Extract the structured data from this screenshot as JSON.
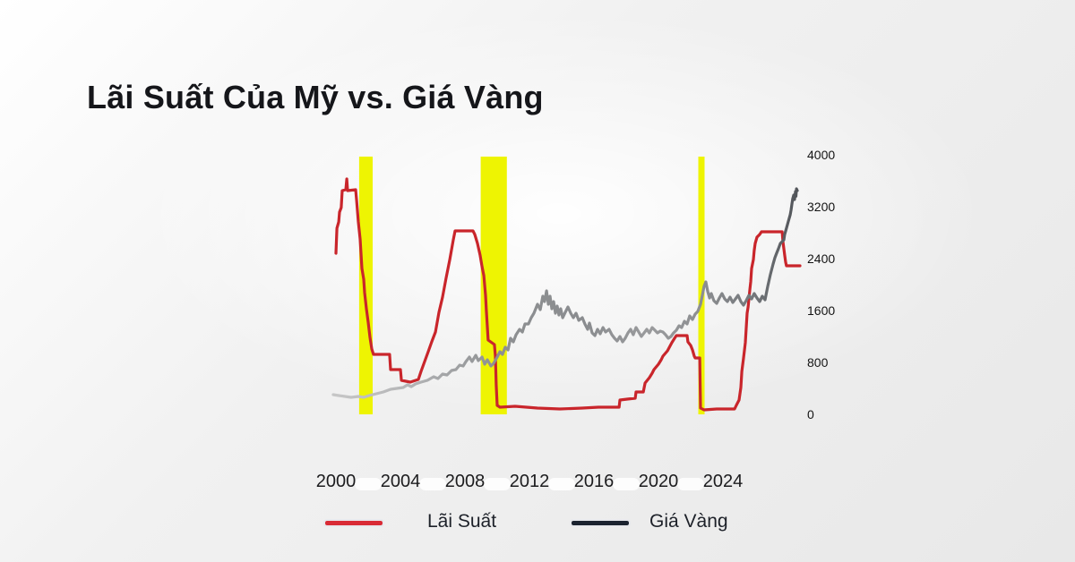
{
  "chart": {
    "title": "Lãi Suất Của Mỹ vs. Giá Vàng",
    "type": "line",
    "x_axis": {
      "unit": "year",
      "ticks": [
        2000,
        2004,
        2008,
        2012,
        2016,
        2020,
        2024
      ]
    },
    "y_axis": {
      "side": "right",
      "range": [
        0,
        4000
      ],
      "ticks": [
        4000,
        3200,
        2400,
        1600,
        800,
        0
      ]
    },
    "highlight_bands": {
      "color": "#eef402",
      "ranges": [
        [
          2001.44,
          2002.28
        ],
        [
          2008.98,
          2010.6
        ],
        [
          2022.47,
          2022.86
        ]
      ]
    },
    "series": [
      {
        "name": "Lãi Suất",
        "color": "#c9252b",
        "legend_swatch_color": "#d92b35",
        "points": [
          [
            2000.0,
            2483
          ],
          [
            2000.06,
            2869
          ],
          [
            2000.17,
            2966
          ],
          [
            2000.22,
            3117
          ],
          [
            2000.33,
            3186
          ],
          [
            2000.39,
            3448
          ],
          [
            2000.61,
            3462
          ],
          [
            2000.67,
            3628
          ],
          [
            2000.72,
            3448
          ],
          [
            2001.22,
            3462
          ],
          [
            2001.28,
            3310
          ],
          [
            2001.39,
            2966
          ],
          [
            2001.5,
            2703
          ],
          [
            2001.61,
            2248
          ],
          [
            2001.72,
            2083
          ],
          [
            2001.78,
            1876
          ],
          [
            2001.89,
            1628
          ],
          [
            2002.0,
            1421
          ],
          [
            2002.11,
            1186
          ],
          [
            2002.22,
            1007
          ],
          [
            2002.33,
            924
          ],
          [
            2003.33,
            924
          ],
          [
            2003.39,
            690
          ],
          [
            2004.0,
            690
          ],
          [
            2004.06,
            524
          ],
          [
            2004.61,
            497
          ],
          [
            2005.11,
            538
          ],
          [
            2005.28,
            662
          ],
          [
            2005.5,
            814
          ],
          [
            2005.72,
            966
          ],
          [
            2005.94,
            1117
          ],
          [
            2006.17,
            1269
          ],
          [
            2006.39,
            1572
          ],
          [
            2006.61,
            1807
          ],
          [
            2006.83,
            2097
          ],
          [
            2007.06,
            2386
          ],
          [
            2007.28,
            2690
          ],
          [
            2007.39,
            2828
          ],
          [
            2008.5,
            2828
          ],
          [
            2008.61,
            2772
          ],
          [
            2008.78,
            2634
          ],
          [
            2008.94,
            2455
          ],
          [
            2009.06,
            2276
          ],
          [
            2009.17,
            2138
          ],
          [
            2009.28,
            1834
          ],
          [
            2009.33,
            1600
          ],
          [
            2009.39,
            1352
          ],
          [
            2009.44,
            1145
          ],
          [
            2009.67,
            1103
          ],
          [
            2009.83,
            1076
          ],
          [
            2009.89,
            897
          ],
          [
            2009.94,
            455
          ],
          [
            2010.0,
            138
          ],
          [
            2010.17,
            110
          ],
          [
            2011.11,
            124
          ],
          [
            2012.5,
            97
          ],
          [
            2013.89,
            83
          ],
          [
            2015.28,
            97
          ],
          [
            2016.28,
            110
          ],
          [
            2017.56,
            110
          ],
          [
            2017.61,
            221
          ],
          [
            2018.06,
            234
          ],
          [
            2018.56,
            248
          ],
          [
            2018.61,
            345
          ],
          [
            2019.06,
            345
          ],
          [
            2019.17,
            483
          ],
          [
            2019.44,
            566
          ],
          [
            2019.61,
            634
          ],
          [
            2019.72,
            690
          ],
          [
            2020.0,
            772
          ],
          [
            2020.17,
            841
          ],
          [
            2020.28,
            897
          ],
          [
            2020.56,
            979
          ],
          [
            2020.83,
            1103
          ],
          [
            2021.0,
            1172
          ],
          [
            2021.11,
            1214
          ],
          [
            2021.78,
            1214
          ],
          [
            2021.83,
            1117
          ],
          [
            2022.0,
            1062
          ],
          [
            2022.11,
            993
          ],
          [
            2022.22,
            897
          ],
          [
            2022.28,
            869
          ],
          [
            2022.56,
            869
          ],
          [
            2022.61,
            97
          ],
          [
            2022.83,
            69
          ],
          [
            2023.61,
            83
          ],
          [
            2024.72,
            83
          ],
          [
            2024.83,
            138
          ],
          [
            2025.0,
            221
          ],
          [
            2025.11,
            414
          ],
          [
            2025.17,
            662
          ],
          [
            2025.28,
            869
          ],
          [
            2025.39,
            1103
          ],
          [
            2025.44,
            1310
          ],
          [
            2025.5,
            1559
          ],
          [
            2025.56,
            1655
          ],
          [
            2025.67,
            1931
          ],
          [
            2025.72,
            2041
          ],
          [
            2025.78,
            2248
          ],
          [
            2025.89,
            2386
          ],
          [
            2025.94,
            2524
          ],
          [
            2026.0,
            2634
          ],
          [
            2026.11,
            2731
          ],
          [
            2026.28,
            2772
          ],
          [
            2026.39,
            2814
          ],
          [
            2027.67,
            2814
          ],
          [
            2027.72,
            2662
          ],
          [
            2027.78,
            2552
          ],
          [
            2027.83,
            2455
          ],
          [
            2027.89,
            2345
          ],
          [
            2027.94,
            2290
          ],
          [
            2028.78,
            2290
          ]
        ]
      },
      {
        "name": "Giá Vàng",
        "color": "#8e9092",
        "legend_swatch_color": "#1c2330",
        "gradient_stops": [
          [
            0.0,
            "#c9c9c9"
          ],
          [
            0.18,
            "#b4b5b7"
          ],
          [
            0.36,
            "#8e9092"
          ],
          [
            0.55,
            "#8a8c8f"
          ],
          [
            0.68,
            "#9a9b9d"
          ],
          [
            0.8,
            "#8b8d90"
          ],
          [
            0.9,
            "#73767a"
          ],
          [
            1.0,
            "#4e5156"
          ]
        ],
        "points": [
          [
            1999.83,
            303
          ],
          [
            2000.17,
            290
          ],
          [
            2000.56,
            276
          ],
          [
            2000.94,
            262
          ],
          [
            2001.39,
            276
          ],
          [
            2001.72,
            262
          ],
          [
            2002.06,
            290
          ],
          [
            2002.5,
            317
          ],
          [
            2002.94,
            345
          ],
          [
            2003.39,
            386
          ],
          [
            2003.78,
            400
          ],
          [
            2004.17,
            414
          ],
          [
            2004.44,
            455
          ],
          [
            2004.67,
            428
          ],
          [
            2004.94,
            469
          ],
          [
            2005.28,
            497
          ],
          [
            2005.67,
            524
          ],
          [
            2006.06,
            579
          ],
          [
            2006.33,
            552
          ],
          [
            2006.61,
            621
          ],
          [
            2006.89,
            607
          ],
          [
            2007.17,
            676
          ],
          [
            2007.44,
            690
          ],
          [
            2007.67,
            759
          ],
          [
            2007.89,
            745
          ],
          [
            2008.06,
            814
          ],
          [
            2008.28,
            883
          ],
          [
            2008.44,
            814
          ],
          [
            2008.67,
            910
          ],
          [
            2008.83,
            828
          ],
          [
            2009.06,
            883
          ],
          [
            2009.22,
            772
          ],
          [
            2009.39,
            841
          ],
          [
            2009.61,
            745
          ],
          [
            2009.78,
            786
          ],
          [
            2010.0,
            883
          ],
          [
            2010.17,
            966
          ],
          [
            2010.33,
            924
          ],
          [
            2010.5,
            1034
          ],
          [
            2010.67,
            993
          ],
          [
            2010.83,
            1172
          ],
          [
            2011.0,
            1117
          ],
          [
            2011.17,
            1228
          ],
          [
            2011.39,
            1310
          ],
          [
            2011.56,
            1269
          ],
          [
            2011.72,
            1393
          ],
          [
            2011.94,
            1393
          ],
          [
            2012.11,
            1490
          ],
          [
            2012.28,
            1559
          ],
          [
            2012.5,
            1697
          ],
          [
            2012.67,
            1614
          ],
          [
            2012.83,
            1821
          ],
          [
            2012.94,
            1738
          ],
          [
            2013.06,
            1903
          ],
          [
            2013.17,
            1697
          ],
          [
            2013.28,
            1821
          ],
          [
            2013.39,
            1628
          ],
          [
            2013.5,
            1738
          ],
          [
            2013.61,
            1559
          ],
          [
            2013.72,
            1669
          ],
          [
            2013.83,
            1531
          ],
          [
            2013.94,
            1628
          ],
          [
            2014.06,
            1490
          ],
          [
            2014.22,
            1572
          ],
          [
            2014.39,
            1655
          ],
          [
            2014.56,
            1559
          ],
          [
            2014.72,
            1490
          ],
          [
            2014.89,
            1559
          ],
          [
            2015.06,
            1448
          ],
          [
            2015.28,
            1490
          ],
          [
            2015.44,
            1393
          ],
          [
            2015.61,
            1310
          ],
          [
            2015.72,
            1407
          ],
          [
            2015.89,
            1255
          ],
          [
            2016.06,
            1214
          ],
          [
            2016.22,
            1310
          ],
          [
            2016.39,
            1241
          ],
          [
            2016.56,
            1338
          ],
          [
            2016.72,
            1269
          ],
          [
            2016.94,
            1310
          ],
          [
            2017.11,
            1228
          ],
          [
            2017.28,
            1172
          ],
          [
            2017.44,
            1131
          ],
          [
            2017.61,
            1200
          ],
          [
            2017.78,
            1117
          ],
          [
            2017.94,
            1172
          ],
          [
            2018.11,
            1255
          ],
          [
            2018.28,
            1310
          ],
          [
            2018.44,
            1228
          ],
          [
            2018.61,
            1338
          ],
          [
            2018.78,
            1269
          ],
          [
            2018.94,
            1200
          ],
          [
            2019.11,
            1255
          ],
          [
            2019.28,
            1310
          ],
          [
            2019.44,
            1255
          ],
          [
            2019.61,
            1338
          ],
          [
            2019.78,
            1297
          ],
          [
            2019.94,
            1255
          ],
          [
            2020.11,
            1283
          ],
          [
            2020.28,
            1269
          ],
          [
            2020.44,
            1228
          ],
          [
            2020.61,
            1172
          ],
          [
            2020.78,
            1200
          ],
          [
            2020.94,
            1255
          ],
          [
            2021.11,
            1297
          ],
          [
            2021.28,
            1366
          ],
          [
            2021.44,
            1338
          ],
          [
            2021.61,
            1434
          ],
          [
            2021.78,
            1393
          ],
          [
            2021.94,
            1517
          ],
          [
            2022.11,
            1462
          ],
          [
            2022.28,
            1545
          ],
          [
            2022.44,
            1586
          ],
          [
            2022.61,
            1697
          ],
          [
            2022.72,
            1834
          ],
          [
            2022.83,
            1972
          ],
          [
            2022.94,
            2041
          ],
          [
            2023.06,
            1890
          ],
          [
            2023.17,
            1793
          ],
          [
            2023.28,
            1862
          ],
          [
            2023.44,
            1752
          ],
          [
            2023.61,
            1710
          ],
          [
            2023.78,
            1793
          ],
          [
            2023.94,
            1862
          ],
          [
            2024.11,
            1779
          ],
          [
            2024.28,
            1738
          ],
          [
            2024.44,
            1807
          ],
          [
            2024.61,
            1724
          ],
          [
            2024.78,
            1779
          ],
          [
            2024.94,
            1834
          ],
          [
            2025.11,
            1738
          ],
          [
            2025.28,
            1683
          ],
          [
            2025.44,
            1752
          ],
          [
            2025.61,
            1834
          ],
          [
            2025.78,
            1779
          ],
          [
            2025.94,
            1862
          ],
          [
            2026.11,
            1793
          ],
          [
            2026.28,
            1738
          ],
          [
            2026.44,
            1821
          ],
          [
            2026.61,
            1766
          ],
          [
            2026.78,
            1972
          ],
          [
            2026.94,
            2152
          ],
          [
            2027.11,
            2317
          ],
          [
            2027.22,
            2414
          ],
          [
            2027.33,
            2483
          ],
          [
            2027.44,
            2552
          ],
          [
            2027.56,
            2634
          ],
          [
            2027.67,
            2662
          ],
          [
            2027.78,
            2690
          ],
          [
            2027.83,
            2772
          ],
          [
            2027.94,
            2869
          ],
          [
            2028.06,
            2979
          ],
          [
            2028.17,
            3076
          ],
          [
            2028.22,
            3145
          ],
          [
            2028.28,
            3241
          ],
          [
            2028.33,
            3324
          ],
          [
            2028.39,
            3379
          ],
          [
            2028.44,
            3310
          ],
          [
            2028.5,
            3434
          ],
          [
            2028.53,
            3360
          ],
          [
            2028.56,
            3476
          ],
          [
            2028.61,
            3448
          ]
        ]
      }
    ]
  },
  "legend": {
    "items": [
      {
        "label": "Lãi Suất"
      },
      {
        "label": "Giá Vàng"
      }
    ]
  }
}
